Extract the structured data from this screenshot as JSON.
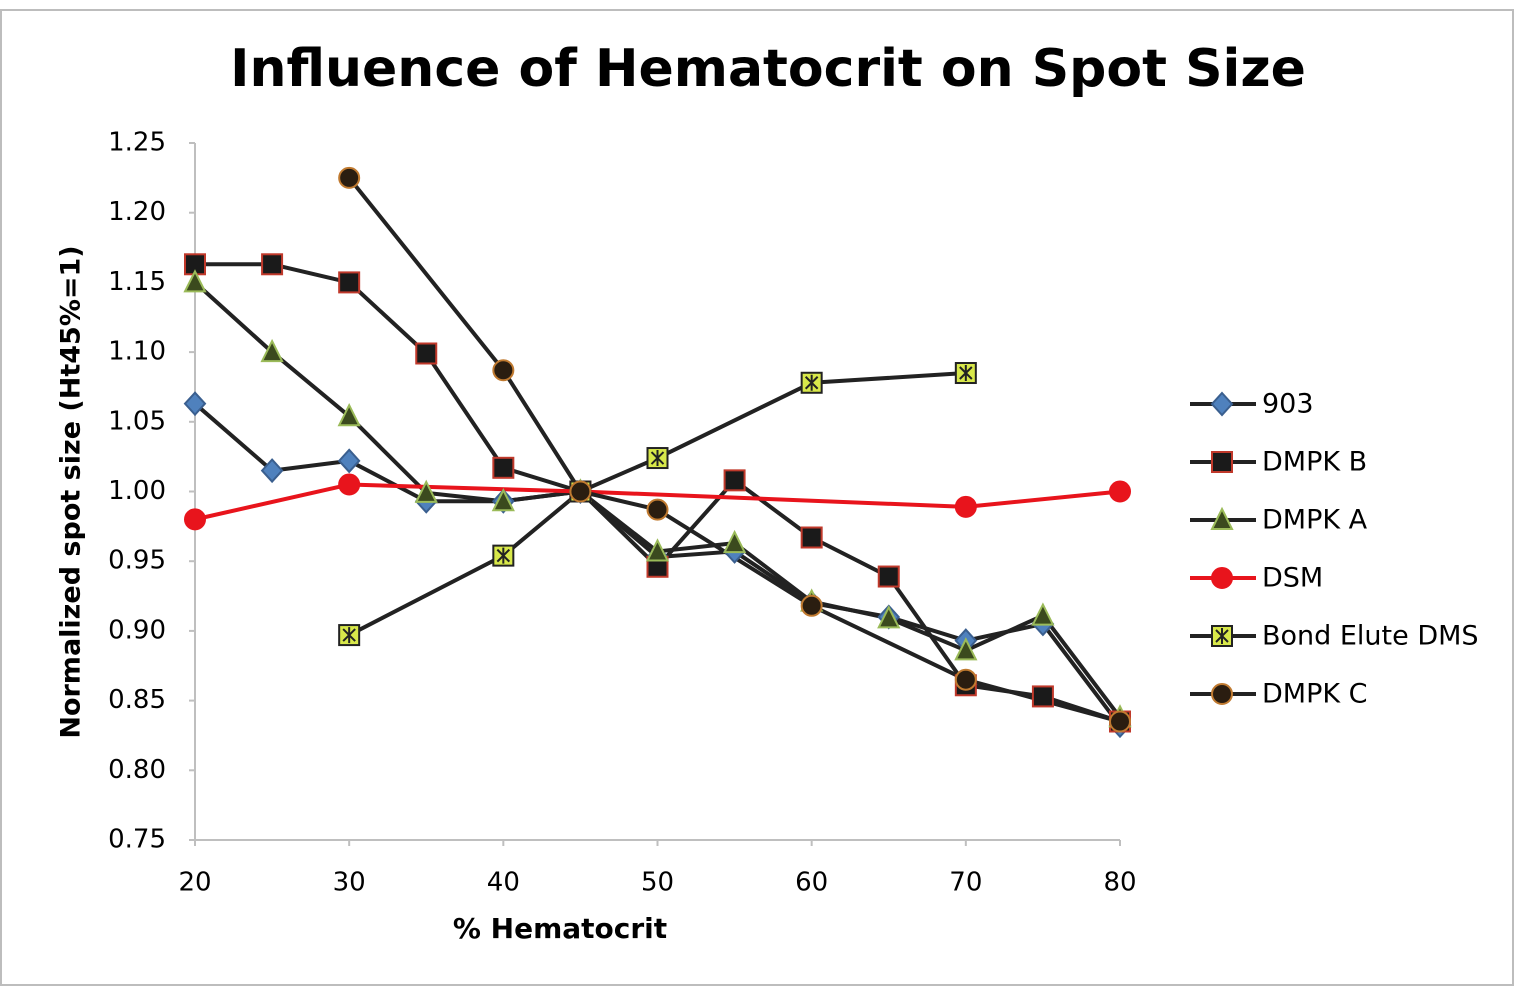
{
  "chart_data": {
    "type": "line",
    "title": "Influence of Hematocrit on Spot Size",
    "xlabel": "% Hematocrit",
    "ylabel": "Normalized spot size (Ht45%=1)",
    "xlim": [
      20,
      80
    ],
    "xticks": [
      20,
      30,
      40,
      50,
      60,
      70,
      80
    ],
    "ylim": [
      0.75,
      1.25
    ],
    "yticks": [
      0.75,
      {
        "value": 0.8,
        "label": "0.80"
      },
      0.85,
      {
        "value": 0.9,
        "label": "0.90"
      },
      0.95,
      {
        "value": 1.0,
        "label": "1.00"
      },
      1.05,
      {
        "value": 1.1,
        "label": "1.10"
      },
      1.15,
      {
        "value": 1.2,
        "label": "1.20"
      },
      1.25
    ],
    "grid": false,
    "legend": "right",
    "series": [
      {
        "name": "903",
        "marker": "diamond",
        "color": "#222222",
        "marker_fill": "#4f81bd",
        "marker_edge": "#3a5f8f",
        "x": [
          20,
          25,
          30,
          35,
          40,
          45,
          50,
          55,
          60,
          65,
          70,
          75,
          80
        ],
        "values": [
          1.063,
          1.015,
          1.022,
          0.993,
          0.993,
          1.0,
          0.953,
          0.957,
          0.92,
          0.91,
          0.893,
          0.905,
          0.832
        ]
      },
      {
        "name": "DMPK B",
        "marker": "square",
        "color": "#222222",
        "marker_fill": "#1a1a1a",
        "marker_edge": "#c0392b",
        "x": [
          20,
          25,
          30,
          35,
          40,
          45,
          50,
          55,
          60,
          65,
          70,
          75,
          80
        ],
        "values": [
          1.163,
          1.163,
          1.15,
          1.099,
          1.017,
          1.0,
          0.946,
          1.008,
          0.967,
          0.939,
          0.861,
          0.853,
          0.835
        ]
      },
      {
        "name": "DMPK A",
        "marker": "triangle",
        "color": "#222222",
        "marker_fill": "#3b4a1e",
        "marker_edge": "#9bbb59",
        "x": [
          20,
          25,
          30,
          35,
          40,
          45,
          50,
          55,
          60,
          65,
          70,
          75,
          80
        ],
        "values": [
          1.15,
          1.1,
          1.054,
          0.999,
          0.993,
          1.0,
          0.957,
          0.963,
          0.921,
          0.909,
          0.886,
          0.911,
          0.838
        ]
      },
      {
        "name": "DSM",
        "marker": "circle",
        "color": "#e8141c",
        "marker_fill": "#e8141c",
        "marker_edge": "#e8141c",
        "x": [
          20,
          30,
          45,
          70,
          80
        ],
        "values": [
          0.98,
          1.005,
          1.0,
          0.989,
          1.0
        ]
      },
      {
        "name": "Bond Elute DMS",
        "marker": "star-square",
        "color": "#222222",
        "marker_fill": "#d8e84a",
        "marker_edge": "#222222",
        "x": [
          30,
          40,
          45,
          50,
          60,
          70
        ],
        "values": [
          0.897,
          0.954,
          1.0,
          1.024,
          1.078,
          1.085
        ]
      },
      {
        "name": "DMPK C",
        "marker": "circle",
        "color": "#222222",
        "marker_fill": "#2a1d10",
        "marker_edge": "#c07a30",
        "x": [
          30,
          40,
          45,
          50,
          60,
          70,
          80
        ],
        "values": [
          1.225,
          1.087,
          1.0,
          0.987,
          0.918,
          0.865,
          0.835
        ]
      }
    ]
  }
}
